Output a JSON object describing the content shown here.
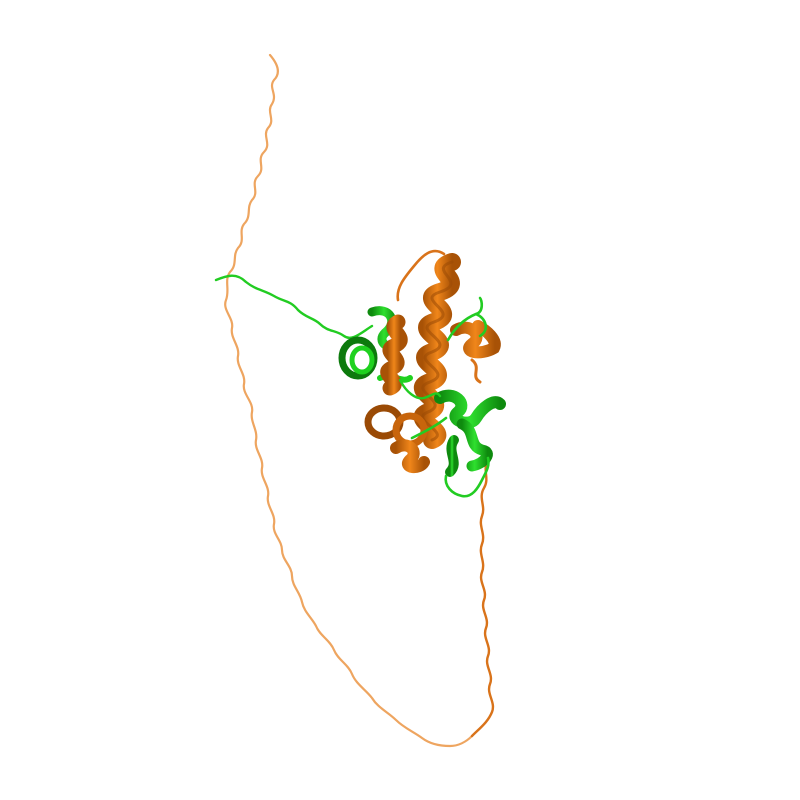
{
  "scene": {
    "background": "#ffffff",
    "colors": {
      "chain_a": "#e8760c",
      "chain_a_dark": "#9a4a05",
      "chain_a_light": "#f2a460",
      "chain_b": "#1fd11f",
      "chain_b_dark": "#0d7a0d"
    },
    "chains": [
      {
        "id": "A",
        "color_name": "orange",
        "style": "cartoon"
      },
      {
        "id": "B",
        "color_name": "green",
        "style": "cartoon"
      }
    ]
  }
}
